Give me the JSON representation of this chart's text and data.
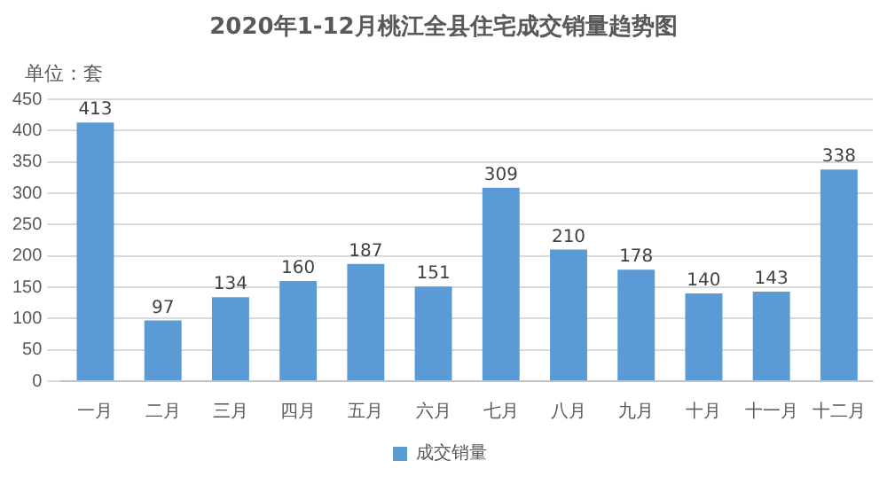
{
  "chart_data": {
    "type": "bar",
    "title": "2020年1-12月桃江全县住宅成交销量趋势图",
    "annotations": [
      "单位：套"
    ],
    "categories": [
      "一月",
      "二月",
      "三月",
      "四月",
      "五月",
      "六月",
      "七月",
      "八月",
      "九月",
      "十月",
      "十一月",
      "十二月"
    ],
    "series": [
      {
        "name": "成交销量",
        "color": "#5b9bd5",
        "values": [
          413,
          97,
          134,
          160,
          187,
          151,
          309,
          210,
          178,
          140,
          143,
          338
        ]
      }
    ],
    "ylim": [
      0,
      450
    ],
    "yticks": [
      0,
      50,
      100,
      150,
      200,
      250,
      300,
      350,
      400,
      450
    ],
    "grid": "y",
    "legend": "bottom",
    "data_labels": true
  }
}
